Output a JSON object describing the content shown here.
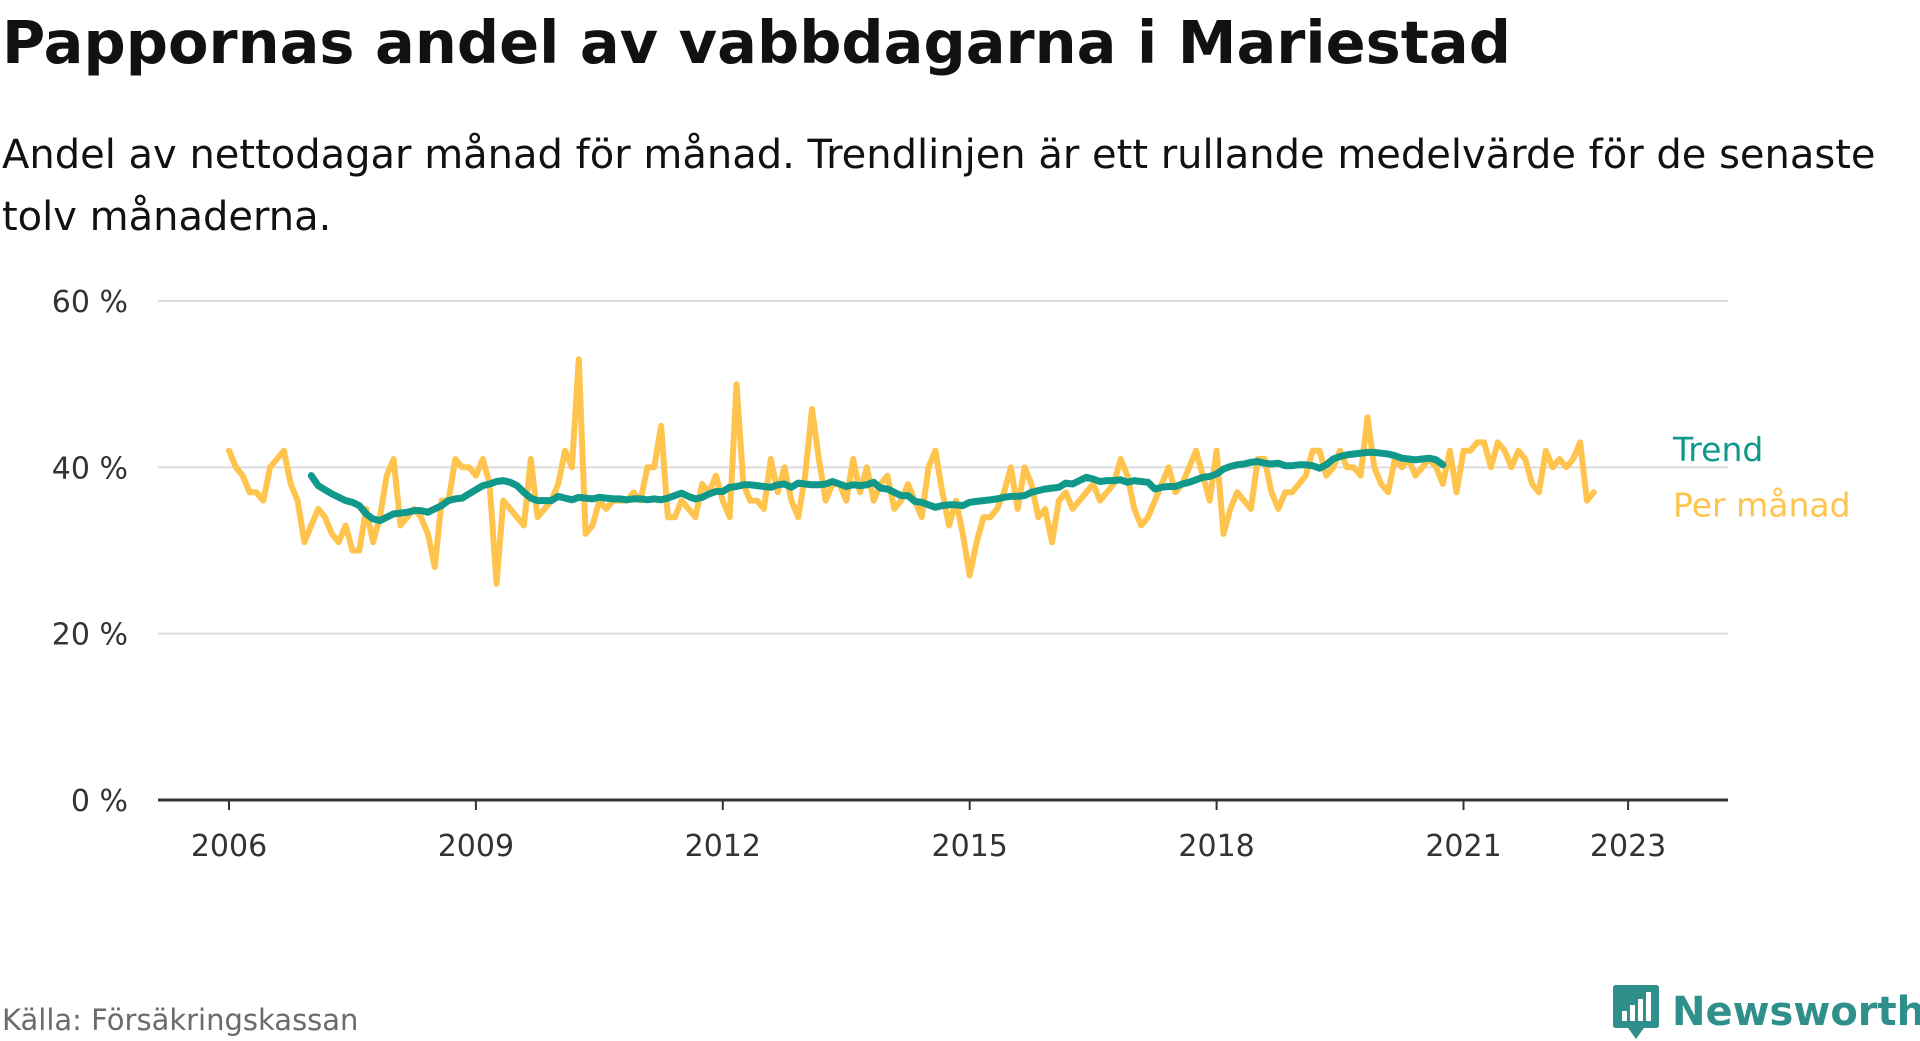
{
  "title": "Pappornas andel av vabbdagarna i Mariestad",
  "subtitle": "Andel av nettodagar månad för månad. Trendlinjen är ett rullande medelvärde för de senaste tolv månaderna.",
  "source": "Källa: Försäkringskassan",
  "brand": {
    "name": "Newsworthy",
    "icon": "bar-chart-icon",
    "color": "#2f8f8a"
  },
  "chart_data": {
    "type": "line",
    "x_start": "2006-01",
    "y_unit": "%",
    "ylim": [
      0,
      60
    ],
    "y_ticks": [
      0,
      20,
      40,
      60
    ],
    "y_tick_labels": [
      "0 %",
      "20 %",
      "40 %",
      "60 %"
    ],
    "x_ticks": [
      2006,
      2009,
      2012,
      2015,
      2018,
      2021,
      2023
    ],
    "x_tick_labels": [
      "2006",
      "2009",
      "2012",
      "2015",
      "2018",
      "2021",
      "2023"
    ],
    "grid": true,
    "legend": "inline-end-labels",
    "series": [
      {
        "name": "Per månad",
        "color": "#ffc44d",
        "monthly": [
          42,
          40,
          39,
          37,
          37,
          36,
          40,
          41,
          42,
          38,
          36,
          31,
          33,
          35,
          34,
          32,
          31,
          33,
          30,
          30,
          35,
          31,
          34,
          39,
          41,
          33,
          34,
          35,
          34,
          32,
          28,
          36,
          36,
          41,
          40,
          40,
          39,
          41,
          38,
          26,
          36,
          35,
          34,
          33,
          41,
          34,
          35,
          36,
          38,
          42,
          40,
          53,
          32,
          33,
          36,
          35,
          36,
          36,
          36,
          37,
          36,
          40,
          40,
          45,
          34,
          34,
          36,
          35,
          34,
          38,
          37,
          39,
          36,
          34,
          50,
          38,
          36,
          36,
          35,
          41,
          37,
          40,
          36,
          34,
          39,
          47,
          41,
          36,
          38,
          38,
          36,
          41,
          37,
          40,
          36,
          38,
          39,
          35,
          36,
          38,
          36,
          34,
          40,
          42,
          37,
          33,
          36,
          32,
          27,
          31,
          34,
          34,
          35,
          37,
          40,
          35,
          40,
          38,
          34,
          35,
          31,
          36,
          37,
          35,
          36,
          37,
          38,
          36,
          37,
          38,
          41,
          39,
          35,
          33,
          34,
          36,
          38,
          40,
          37,
          38,
          40,
          42,
          39,
          36,
          42,
          32,
          35,
          37,
          36,
          35,
          41,
          41,
          37,
          35,
          37,
          37,
          38,
          39,
          42,
          42,
          39,
          40,
          42,
          40,
          40,
          39,
          46,
          40,
          38,
          37,
          41,
          40,
          41,
          39,
          40,
          41,
          40,
          38,
          42,
          37,
          42,
          42,
          43,
          43,
          40,
          43,
          42,
          40,
          42,
          41,
          38,
          37,
          42,
          40,
          41,
          40,
          41,
          43,
          36,
          37
        ]
      },
      {
        "name": "Trend",
        "color": "#10998a",
        "start": "2007-01",
        "monthly": [
          39,
          37.8,
          37.3,
          36.8,
          36.4,
          36,
          35.8,
          35.4,
          34.4,
          33.8,
          33.6,
          34,
          34.4,
          34.5,
          34.6,
          34.8,
          34.8,
          34.6,
          35,
          35.4,
          36,
          36.2,
          36.3,
          36.8,
          37.3,
          37.8,
          38,
          38.3,
          38.4,
          38.2,
          37.8,
          37,
          36.3,
          36,
          36,
          36,
          36.5,
          36.3,
          36.1,
          36.4,
          36.3,
          36.2,
          36.4,
          36.3,
          36.2,
          36.2,
          36.1,
          36.2,
          36.2,
          36.1,
          36.2,
          36.1,
          36.3,
          36.6,
          36.9,
          36.5,
          36.2,
          36.4,
          36.8,
          37.1,
          37.1,
          37.6,
          37.7,
          37.9,
          37.9,
          37.8,
          37.7,
          37.6,
          37.9,
          38,
          37.6,
          38.1,
          38,
          37.9,
          37.9,
          38,
          38.3,
          38,
          37.7,
          37.9,
          37.8,
          37.9,
          38.2,
          37.5,
          37.4,
          37,
          36.6,
          36.6,
          35.9,
          35.8,
          35.5,
          35.2,
          35.4,
          35.5,
          35.5,
          35.4,
          35.8,
          35.9,
          36,
          36.1,
          36.2,
          36.4,
          36.5,
          36.5,
          36.6,
          37,
          37.2,
          37.4,
          37.5,
          37.6,
          38.1,
          38,
          38.4,
          38.8,
          38.6,
          38.3,
          38.4,
          38.4,
          38.5,
          38.2,
          38.4,
          38.3,
          38.2,
          37.4,
          37.6,
          37.7,
          37.7,
          38,
          38.2,
          38.5,
          38.8,
          38.9,
          39.2,
          39.8,
          40.1,
          40.3,
          40.4,
          40.6,
          40.7,
          40.5,
          40.4,
          40.5,
          40.2,
          40.2,
          40.3,
          40.3,
          40.2,
          39.9,
          40.3,
          41,
          41.3,
          41.5,
          41.6,
          41.7,
          41.8,
          41.8,
          41.7,
          41.6,
          41.4,
          41.1,
          41,
          40.9,
          41,
          41.1,
          40.9,
          40.3
        ]
      }
    ]
  }
}
